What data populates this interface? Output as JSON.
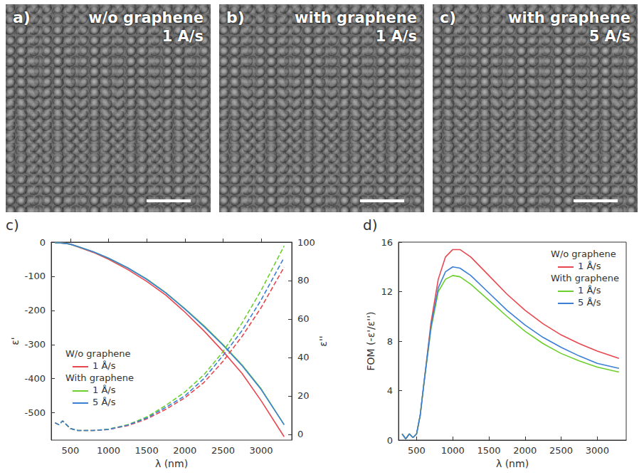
{
  "images": [
    {
      "letter": "a)",
      "lines": [
        "w/o graphene",
        "1 A/s"
      ]
    },
    {
      "letter": "b)",
      "lines": [
        "with graphene",
        "1 A/s"
      ]
    },
    {
      "letter": "c)",
      "lines": [
        "with graphene",
        "5 A/s"
      ]
    }
  ],
  "chart_data": [
    {
      "type": "line",
      "letter": "c)",
      "x_label": "λ (nm)",
      "y_label": "ε'",
      "y2_label": "ε''",
      "x": [
        300,
        350,
        400,
        450,
        500,
        600,
        800,
        1000,
        1250,
        1500,
        1750,
        2000,
        2250,
        2500,
        2750,
        3000,
        3300
      ],
      "xlim": [
        250,
        3400
      ],
      "xticks": [
        500,
        1000,
        1500,
        2000,
        2500,
        3000
      ],
      "ylim": [
        -580,
        0
      ],
      "yticks": [
        -500,
        -400,
        -300,
        -200,
        -100,
        0
      ],
      "y2lim": [
        -3,
        100
      ],
      "y2ticks": [
        0,
        20,
        40,
        60,
        80,
        100
      ],
      "grid": false,
      "legend": "lower left",
      "series": [
        {
          "name": "1 Å/s",
          "group": "W/o graphene",
          "color": "#e8474f",
          "axis": "y",
          "line_style": "solid",
          "values": [
            -2,
            -2,
            -3,
            -4,
            -6,
            -14,
            -30,
            -50,
            -80,
            -115,
            -155,
            -205,
            -260,
            -320,
            -385,
            -465,
            -570
          ]
        },
        {
          "name": "1 Å/s",
          "group": "With graphene",
          "color": "#6ccf2c",
          "axis": "y",
          "line_style": "solid",
          "values": [
            -2,
            -2,
            -3,
            -4,
            -6,
            -13,
            -28,
            -47,
            -75,
            -108,
            -148,
            -195,
            -245,
            -300,
            -360,
            -430,
            -535
          ]
        },
        {
          "name": "5 Å/s",
          "group": "With graphene",
          "color": "#3b7fd6",
          "axis": "y",
          "line_style": "solid",
          "values": [
            -2,
            -2,
            -3,
            -4,
            -6,
            -13,
            -28,
            -47,
            -75,
            -109,
            -149,
            -196,
            -247,
            -302,
            -362,
            -432,
            -535
          ]
        },
        {
          "name": "1 Å/s",
          "group": "W/o graphene",
          "color": "#e8474f",
          "axis": "y2",
          "line_style": "dashed",
          "values": [
            6,
            5,
            7,
            5,
            3,
            2,
            2,
            2.5,
            4.5,
            8,
            13,
            19,
            27,
            38,
            51,
            66,
            87
          ]
        },
        {
          "name": "1 Å/s",
          "group": "With graphene",
          "color": "#6ccf2c",
          "axis": "y2",
          "line_style": "dashed",
          "values": [
            6,
            5,
            7,
            5,
            3,
            2,
            2,
            2.7,
            5,
            9,
            15,
            22,
            31,
            43,
            58,
            75,
            98
          ]
        },
        {
          "name": "5 Å/s",
          "group": "With graphene",
          "color": "#3b7fd6",
          "axis": "y2",
          "line_style": "dashed",
          "values": [
            6,
            5,
            7,
            5,
            3,
            2,
            2,
            2.6,
            4.8,
            8.5,
            14,
            20,
            29,
            41,
            54,
            70,
            92
          ]
        }
      ]
    },
    {
      "type": "line",
      "letter": "d)",
      "x_label": "λ (nm)",
      "y_label": "FOM (-ε'/ε'')",
      "x": [
        300,
        350,
        400,
        450,
        500,
        550,
        600,
        700,
        800,
        900,
        1000,
        1100,
        1250,
        1500,
        1750,
        2000,
        2250,
        2500,
        2750,
        3000,
        3300
      ],
      "xlim": [
        250,
        3400
      ],
      "xticks": [
        500,
        1000,
        1500,
        2000,
        2500,
        3000
      ],
      "ylim": [
        0,
        16
      ],
      "yticks": [
        0,
        4,
        8,
        12,
        16
      ],
      "grid": false,
      "legend": "upper right",
      "series": [
        {
          "name": "1 Å/s",
          "group": "W/o graphene",
          "color": "#e8474f",
          "line_style": "solid",
          "values": [
            0.5,
            0.1,
            0.5,
            0.2,
            0.5,
            2,
            4.5,
            9.5,
            13,
            14.8,
            15.4,
            15.4,
            14.8,
            13.3,
            11.8,
            10.5,
            9.4,
            8.5,
            7.8,
            7.2,
            6.6
          ]
        },
        {
          "name": "1 Å/s",
          "group": "With graphene",
          "color": "#6ccf2c",
          "line_style": "solid",
          "values": [
            0.5,
            0.1,
            0.5,
            0.2,
            0.5,
            2,
            4.5,
            9,
            12,
            13,
            13.3,
            13.2,
            12.6,
            11.3,
            10,
            8.8,
            7.8,
            7,
            6.4,
            5.9,
            5.5
          ]
        },
        {
          "name": "5 Å/s",
          "group": "With graphene",
          "color": "#3b7fd6",
          "line_style": "solid",
          "values": [
            0.5,
            0.1,
            0.5,
            0.2,
            0.5,
            2,
            4.5,
            9.2,
            12.3,
            13.6,
            14,
            13.9,
            13.3,
            11.9,
            10.5,
            9.3,
            8.3,
            7.5,
            6.8,
            6.2,
            5.8
          ]
        }
      ]
    }
  ]
}
